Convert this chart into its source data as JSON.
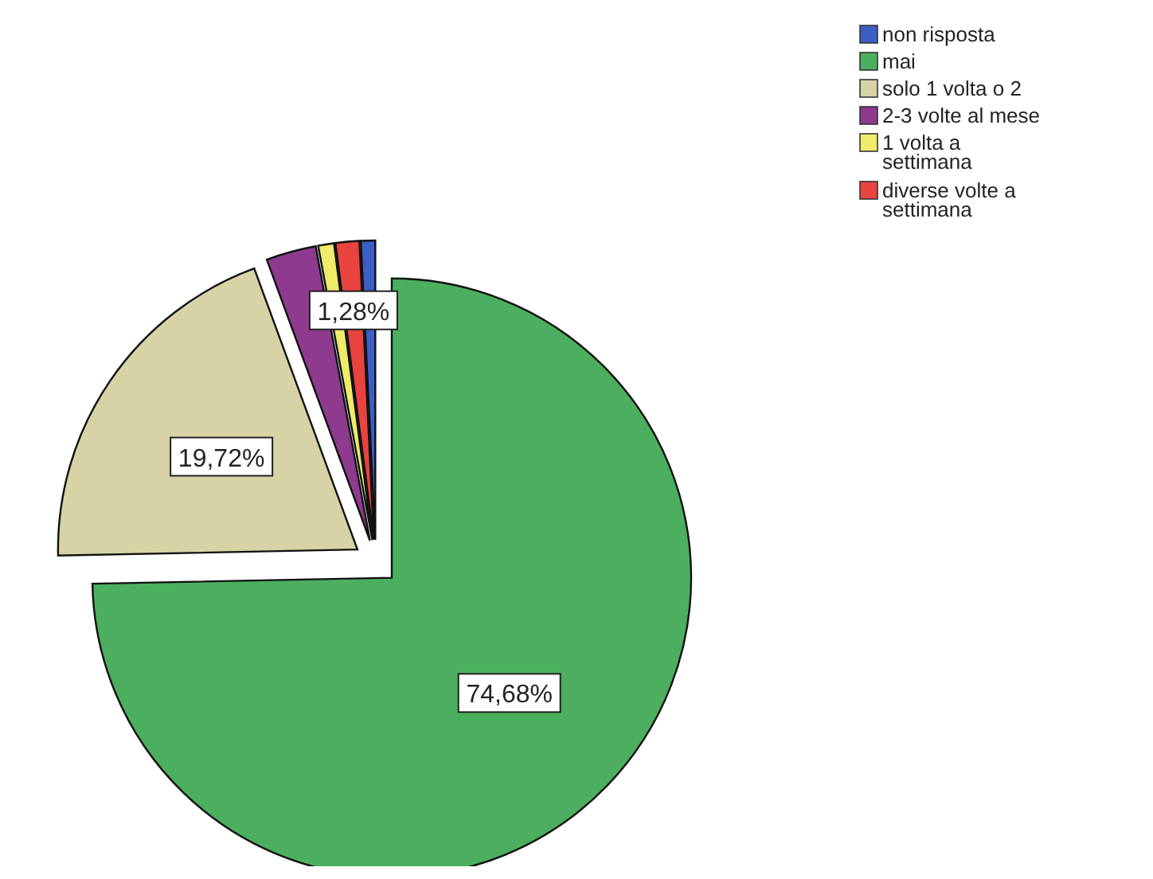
{
  "chart_data": {
    "type": "pie",
    "categories": [
      "non risposta",
      "mai",
      "solo 1 volta o 2",
      "2-3 volte al mese",
      "1 volta a settimana",
      "diverse volte a settimana"
    ],
    "values": [
      0.77,
      74.68,
      19.72,
      2.7,
      0.85,
      1.28
    ],
    "colors": [
      "#3b5fc4",
      "#4caf5f",
      "#d8d3a6",
      "#8e3a8e",
      "#f0ec6a",
      "#e8433f"
    ],
    "value_labels": [
      null,
      "74,68%",
      "19,72%",
      null,
      null,
      "1,28%"
    ],
    "legend": "top right"
  }
}
